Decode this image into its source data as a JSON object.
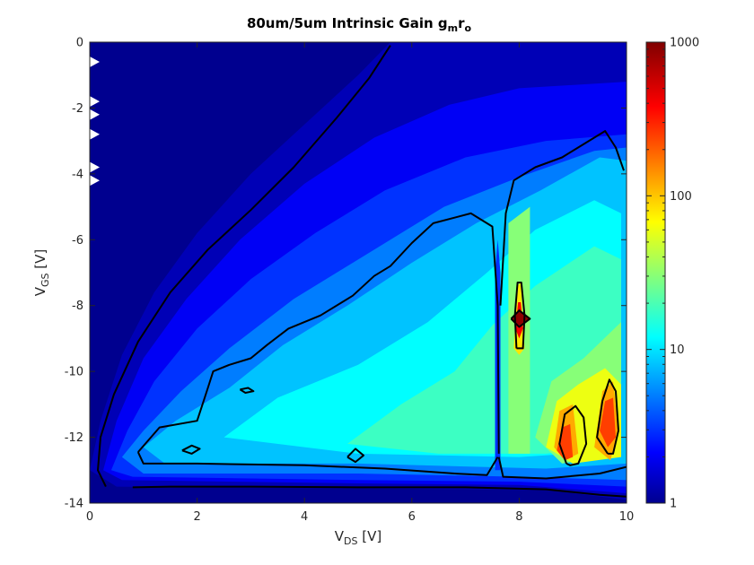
{
  "chart_data": {
    "type": "heatmap",
    "subtype": "filled-contour",
    "title": {
      "main": "80um/5um Intrinsic Gain g",
      "sub1": "m",
      "mid": "r",
      "sub2": "o"
    },
    "xlabel": {
      "main": "V",
      "sub": "DS",
      "unit": " [V]"
    },
    "ylabel": {
      "main": "V",
      "sub": "GS",
      "unit": " [V]"
    },
    "xlim": [
      0,
      10
    ],
    "ylim": [
      -14,
      0
    ],
    "xticks": [
      "0",
      "2",
      "4",
      "6",
      "8",
      "10"
    ],
    "xtick_values": [
      0,
      2,
      4,
      6,
      8,
      10
    ],
    "yticks": [
      "0",
      "-2",
      "-4",
      "-6",
      "-8",
      "-10",
      "-12",
      "-14"
    ],
    "ytick_values": [
      0,
      -2,
      -4,
      -6,
      -8,
      -10,
      -12,
      -14
    ],
    "colorbar": {
      "scale": "log",
      "range": [
        1,
        1000
      ],
      "tick_labels": [
        "1",
        "10",
        "100",
        "1000"
      ],
      "tick_values": [
        1,
        10,
        100,
        1000
      ],
      "colormap": "jet"
    },
    "regions": [
      {
        "name": "outer-bound",
        "gain": 1.3,
        "points": [
          [
            0.0,
            -13.0
          ],
          [
            0.2,
            -11.5
          ],
          [
            0.6,
            -9.5
          ],
          [
            1.2,
            -7.6
          ],
          [
            2.0,
            -5.8
          ],
          [
            3.0,
            -4.0
          ],
          [
            4.0,
            -2.5
          ],
          [
            5.0,
            -1.0
          ],
          [
            5.6,
            0.0
          ],
          [
            10,
            0
          ],
          [
            10,
            -13.9
          ],
          [
            8.5,
            -13.6
          ],
          [
            5.0,
            -13.55
          ],
          [
            0.5,
            -13.5
          ]
        ]
      },
      {
        "name": "band-2",
        "gain": 2.0,
        "points": [
          [
            0.25,
            -13.0
          ],
          [
            0.5,
            -11.5
          ],
          [
            1.0,
            -9.6
          ],
          [
            1.8,
            -7.8
          ],
          [
            2.8,
            -6.0
          ],
          [
            4.0,
            -4.3
          ],
          [
            5.3,
            -2.9
          ],
          [
            6.7,
            -1.9
          ],
          [
            8.0,
            -1.4
          ],
          [
            10,
            -1.2
          ],
          [
            10,
            -13.7
          ],
          [
            8.0,
            -13.45
          ],
          [
            5.0,
            -13.4
          ],
          [
            0.6,
            -13.3
          ]
        ]
      },
      {
        "name": "band-3",
        "gain": 3.0,
        "points": [
          [
            0.4,
            -13.0
          ],
          [
            0.7,
            -11.8
          ],
          [
            1.2,
            -10.3
          ],
          [
            2.0,
            -8.7
          ],
          [
            3.0,
            -7.2
          ],
          [
            4.2,
            -5.8
          ],
          [
            5.5,
            -4.5
          ],
          [
            7.0,
            -3.5
          ],
          [
            8.5,
            -3.0
          ],
          [
            10,
            -2.8
          ],
          [
            10,
            -13.5
          ],
          [
            8.0,
            -13.35
          ],
          [
            5.0,
            -13.3
          ],
          [
            0.8,
            -13.2
          ]
        ]
      },
      {
        "name": "band-5",
        "gain": 5.0,
        "points": [
          [
            0.6,
            -12.6
          ],
          [
            1.0,
            -11.8
          ],
          [
            1.7,
            -10.6
          ],
          [
            2.6,
            -9.3
          ],
          [
            3.8,
            -7.8
          ],
          [
            5.2,
            -6.4
          ],
          [
            6.6,
            -5.0
          ],
          [
            8.0,
            -4.1
          ],
          [
            9.4,
            -3.3
          ],
          [
            10,
            -3.2
          ],
          [
            10,
            -13.3
          ],
          [
            8.0,
            -13.2
          ],
          [
            5.0,
            -13.1
          ],
          [
            1.0,
            -13.1
          ]
        ]
      },
      {
        "name": "band-8",
        "gain": 8.0,
        "points": [
          [
            1.0,
            -12.3
          ],
          [
            1.6,
            -11.5
          ],
          [
            2.6,
            -10.5
          ],
          [
            3.6,
            -9.2
          ],
          [
            4.8,
            -8.0
          ],
          [
            6.0,
            -6.7
          ],
          [
            7.2,
            -5.5
          ],
          [
            8.4,
            -4.5
          ],
          [
            9.5,
            -3.5
          ],
          [
            10,
            -3.6
          ],
          [
            10,
            -12.8
          ],
          [
            8.5,
            -12.95
          ],
          [
            5.0,
            -12.8
          ],
          [
            1.4,
            -12.8
          ]
        ]
      },
      {
        "name": "band-12",
        "gain": 12.0,
        "points": [
          [
            2.5,
            -12.0
          ],
          [
            3.5,
            -10.8
          ],
          [
            5.0,
            -9.8
          ],
          [
            6.3,
            -8.5
          ],
          [
            7.4,
            -7.0
          ],
          [
            8.3,
            -5.7
          ],
          [
            9.4,
            -4.8
          ],
          [
            9.9,
            -5.2
          ],
          [
            9.9,
            -12.4
          ],
          [
            8.0,
            -12.6
          ],
          [
            5.0,
            -12.5
          ]
        ]
      },
      {
        "name": "band-18",
        "gain": 18.0,
        "points": [
          [
            4.8,
            -12.2
          ],
          [
            5.8,
            -11.0
          ],
          [
            6.8,
            -10.0
          ],
          [
            7.5,
            -8.6
          ],
          [
            8.3,
            -7.4
          ],
          [
            9.4,
            -6.2
          ],
          [
            9.9,
            -6.6
          ],
          [
            9.9,
            -12.2
          ],
          [
            8.5,
            -12.5
          ],
          [
            6.5,
            -12.5
          ]
        ]
      },
      {
        "name": "band-30",
        "gain": 30.0,
        "points": [
          [
            7.8,
            -12.5
          ],
          [
            7.8,
            -5.5
          ],
          [
            8.2,
            -5.0
          ],
          [
            8.2,
            -12.5
          ]
        ]
      },
      {
        "name": "band-30b",
        "gain": 30.0,
        "points": [
          [
            8.3,
            -12.0
          ],
          [
            8.6,
            -10.3
          ],
          [
            9.2,
            -9.6
          ],
          [
            9.9,
            -8.5
          ],
          [
            9.9,
            -12.5
          ],
          [
            8.8,
            -12.8
          ]
        ]
      },
      {
        "name": "band-60",
        "gain": 60.0,
        "points": [
          [
            8.5,
            -12.3
          ],
          [
            8.7,
            -10.9
          ],
          [
            9.1,
            -10.4
          ],
          [
            9.6,
            -9.9
          ],
          [
            9.9,
            -10.4
          ],
          [
            9.9,
            -12.6
          ],
          [
            9.0,
            -12.8
          ]
        ]
      },
      {
        "name": "band-120",
        "gain": 120.0,
        "points": [
          [
            8.65,
            -12.3
          ],
          [
            8.75,
            -11.2
          ],
          [
            9.0,
            -11.0
          ],
          [
            9.1,
            -12.5
          ],
          [
            8.85,
            -12.7
          ]
        ]
      },
      {
        "name": "band-120b",
        "gain": 120.0,
        "points": [
          [
            9.4,
            -12.3
          ],
          [
            9.55,
            -10.6
          ],
          [
            9.75,
            -10.3
          ],
          [
            9.85,
            -11.8
          ],
          [
            9.7,
            -12.7
          ]
        ]
      },
      {
        "name": "band-250",
        "gain": 250.0,
        "points": [
          [
            8.7,
            -12.4
          ],
          [
            8.8,
            -11.7
          ],
          [
            8.95,
            -11.6
          ],
          [
            9.0,
            -12.6
          ],
          [
            8.85,
            -12.7
          ]
        ]
      },
      {
        "name": "band-250b",
        "gain": 250.0,
        "points": [
          [
            9.5,
            -11.8
          ],
          [
            9.6,
            -10.9
          ],
          [
            9.75,
            -10.8
          ],
          [
            9.8,
            -12.0
          ],
          [
            9.65,
            -12.3
          ]
        ]
      },
      {
        "name": "peak-8-stalk",
        "gain": 80.0,
        "points": [
          [
            7.9,
            -9.3
          ],
          [
            7.97,
            -7.4
          ],
          [
            8.03,
            -7.3
          ],
          [
            8.1,
            -9.3
          ],
          [
            8.0,
            -9.5
          ]
        ]
      },
      {
        "name": "peak-8-core",
        "gain": 400.0,
        "points": [
          [
            7.93,
            -8.7
          ],
          [
            7.98,
            -7.9
          ],
          [
            8.03,
            -7.9
          ],
          [
            8.07,
            -8.7
          ],
          [
            8.0,
            -9.0
          ]
        ]
      },
      {
        "name": "peak-8-max",
        "gain": 900.0,
        "points": [
          [
            7.85,
            -8.4
          ],
          [
            8.0,
            -8.1
          ],
          [
            8.2,
            -8.4
          ],
          [
            8.0,
            -8.65
          ]
        ]
      },
      {
        "name": "ridge-7.6",
        "gain": 3.0,
        "points": [
          [
            7.55,
            -13.0
          ],
          [
            7.55,
            -7.0
          ],
          [
            7.6,
            -6.0
          ],
          [
            7.65,
            -7.0
          ],
          [
            7.65,
            -13.0
          ]
        ]
      }
    ],
    "contours": [
      [
        [
          0.3,
          -13.5
        ],
        [
          0.15,
          -13.0
        ],
        [
          0.2,
          -12.0
        ],
        [
          0.45,
          -10.7
        ],
        [
          0.9,
          -9.1
        ],
        [
          1.5,
          -7.6
        ],
        [
          2.2,
          -6.3
        ],
        [
          3.0,
          -5.1
        ],
        [
          3.8,
          -3.8
        ],
        [
          4.6,
          -2.3
        ],
        [
          5.2,
          -1.1
        ],
        [
          5.6,
          -0.1
        ]
      ],
      [
        [
          0.8,
          -13.52
        ],
        [
          1.5,
          -13.5
        ],
        [
          3.0,
          -13.5
        ],
        [
          5.0,
          -13.52
        ],
        [
          7.0,
          -13.52
        ],
        [
          8.5,
          -13.58
        ],
        [
          9.5,
          -13.75
        ],
        [
          10.0,
          -13.8
        ]
      ],
      [
        [
          0.9,
          -12.45
        ],
        [
          1.3,
          -11.7
        ],
        [
          2.0,
          -11.5
        ],
        [
          2.1,
          -11.0
        ],
        [
          2.2,
          -10.5
        ],
        [
          2.3,
          -10.0
        ],
        [
          2.6,
          -9.8
        ],
        [
          3.0,
          -9.6
        ],
        [
          3.3,
          -9.2
        ],
        [
          3.7,
          -8.7
        ],
        [
          4.3,
          -8.3
        ],
        [
          4.9,
          -7.7
        ],
        [
          5.3,
          -7.1
        ],
        [
          5.6,
          -6.8
        ],
        [
          6.0,
          -6.1
        ],
        [
          6.4,
          -5.5
        ],
        [
          7.1,
          -5.2
        ],
        [
          7.5,
          -5.6
        ],
        [
          7.6,
          -8.0
        ],
        [
          7.62,
          -12.5
        ]
      ],
      [
        [
          0.9,
          -12.45
        ],
        [
          1.0,
          -12.8
        ],
        [
          2.0,
          -12.8
        ],
        [
          4.0,
          -12.85
        ],
        [
          5.5,
          -12.95
        ],
        [
          6.8,
          -13.1
        ],
        [
          7.4,
          -13.15
        ],
        [
          7.6,
          -12.6
        ]
      ],
      [
        [
          7.62,
          -12.6
        ],
        [
          7.7,
          -13.2
        ],
        [
          8.5,
          -13.25
        ],
        [
          9.5,
          -13.1
        ],
        [
          10.0,
          -12.9
        ]
      ],
      [
        [
          7.65,
          -8.0
        ],
        [
          7.75,
          -5.2
        ],
        [
          7.9,
          -4.2
        ],
        [
          8.3,
          -3.8
        ],
        [
          8.8,
          -3.5
        ],
        [
          9.3,
          -3.0
        ],
        [
          9.6,
          -2.7
        ],
        [
          9.8,
          -3.2
        ],
        [
          9.95,
          -3.9
        ]
      ],
      [
        [
          8.88,
          -12.8
        ],
        [
          8.75,
          -12.2
        ],
        [
          8.85,
          -11.3
        ],
        [
          9.05,
          -11.05
        ],
        [
          9.2,
          -11.4
        ],
        [
          9.25,
          -12.2
        ],
        [
          9.1,
          -12.8
        ],
        [
          8.95,
          -12.85
        ],
        [
          8.88,
          -12.8
        ]
      ],
      [
        [
          9.65,
          -12.5
        ],
        [
          9.45,
          -12.0
        ],
        [
          9.55,
          -10.9
        ],
        [
          9.68,
          -10.25
        ],
        [
          9.8,
          -10.6
        ],
        [
          9.85,
          -11.8
        ],
        [
          9.75,
          -12.5
        ],
        [
          9.65,
          -12.5
        ]
      ],
      [
        [
          7.95,
          -9.3
        ],
        [
          7.92,
          -8.3
        ],
        [
          7.97,
          -7.3
        ],
        [
          8.04,
          -7.3
        ],
        [
          8.1,
          -8.3
        ],
        [
          8.07,
          -9.3
        ],
        [
          7.95,
          -9.3
        ]
      ],
      [
        [
          7.85,
          -8.4
        ],
        [
          8.0,
          -8.15
        ],
        [
          8.2,
          -8.4
        ],
        [
          8.0,
          -8.65
        ],
        [
          7.85,
          -8.4
        ]
      ],
      [
        [
          1.72,
          -12.4
        ],
        [
          1.9,
          -12.25
        ],
        [
          2.05,
          -12.35
        ],
        [
          1.9,
          -12.5
        ],
        [
          1.72,
          -12.4
        ]
      ],
      [
        [
          4.8,
          -12.6
        ],
        [
          4.95,
          -12.35
        ],
        [
          5.1,
          -12.55
        ],
        [
          4.95,
          -12.75
        ],
        [
          4.8,
          -12.6
        ]
      ],
      [
        [
          2.8,
          -10.55
        ],
        [
          2.95,
          -10.5
        ],
        [
          3.05,
          -10.6
        ],
        [
          2.9,
          -10.65
        ],
        [
          2.8,
          -10.55
        ]
      ]
    ],
    "edge_markers_y": [
      -0.6,
      -1.8,
      -2.2,
      -2.8,
      -3.8,
      -4.2
    ]
  }
}
